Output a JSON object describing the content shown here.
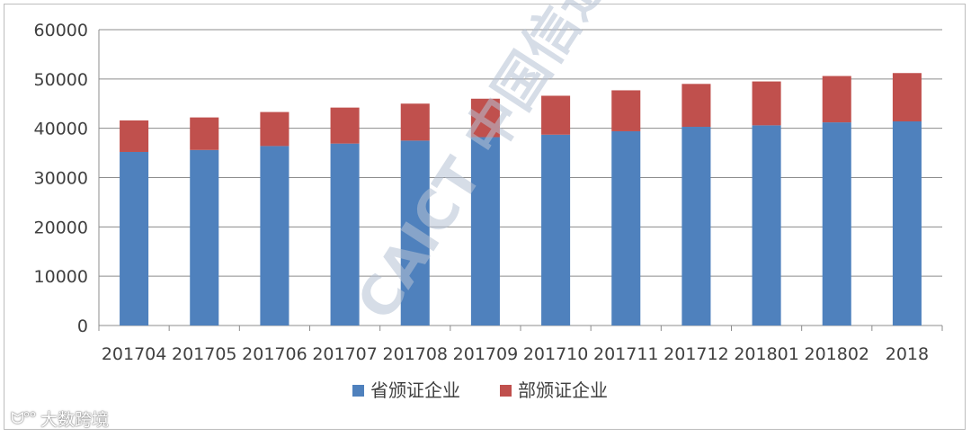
{
  "chart_data": {
    "type": "bar",
    "stacked": true,
    "categories": [
      "201704",
      "201705",
      "201706",
      "201707",
      "201708",
      "201709",
      "201710",
      "201711",
      "201712",
      "201801",
      "201802",
      "2018"
    ],
    "series": [
      {
        "name": "省颁证企业",
        "color": "#4f81bd",
        "values": [
          35200,
          35600,
          36400,
          36900,
          37500,
          38200,
          38700,
          39400,
          40300,
          40600,
          41200,
          41400
        ]
      },
      {
        "name": "部颁证企业",
        "color": "#c0504d",
        "values": [
          6400,
          6600,
          6900,
          7300,
          7500,
          7800,
          7900,
          8300,
          8700,
          8900,
          9400,
          9800
        ]
      }
    ],
    "title": "",
    "xlabel": "",
    "ylabel": "",
    "ylim": [
      0,
      60000
    ],
    "yticks": [
      "0",
      "10000",
      "20000",
      "30000",
      "40000",
      "50000",
      "60000"
    ],
    "grid": true,
    "legend": "bottom-center"
  },
  "watermark": {
    "center_text": "CAICT 中国信通院",
    "corner_icon": "weibo-icon",
    "corner_text": "大数跨境"
  }
}
